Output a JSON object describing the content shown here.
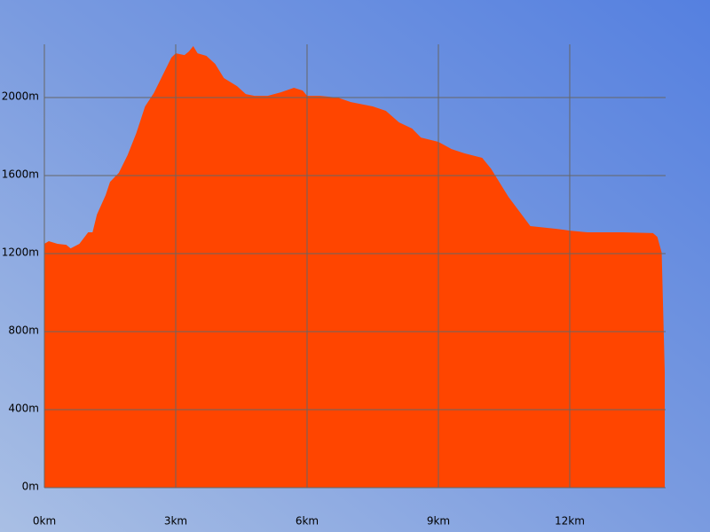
{
  "chart_data": {
    "type": "area",
    "color": "#ff4500",
    "grid": true,
    "x": [
      0,
      0.1,
      0.3,
      0.5,
      0.6,
      0.8,
      1.0,
      1.1,
      1.2,
      1.4,
      1.5,
      1.7,
      1.9,
      2.1,
      2.3,
      2.5,
      2.7,
      2.9,
      3.0,
      3.2,
      3.3,
      3.4,
      3.5,
      3.7,
      3.9,
      4.1,
      4.4,
      4.6,
      4.8,
      5.1,
      5.4,
      5.7,
      5.9,
      6.0,
      6.3,
      6.7,
      7.0,
      7.5,
      7.8,
      8.1,
      8.4,
      8.6,
      9.0,
      9.3,
      9.6,
      10.0,
      10.2,
      10.6,
      11.1,
      11.7,
      12.0,
      12.4,
      13.2,
      13.9,
      14.0,
      14.1,
      14.17
    ],
    "values": [
      1250,
      1264,
      1250,
      1245,
      1227,
      1250,
      1309,
      1309,
      1400,
      1500,
      1568,
      1614,
      1705,
      1818,
      1955,
      2023,
      2114,
      2205,
      2227,
      2218,
      2236,
      2264,
      2227,
      2214,
      2173,
      2100,
      2059,
      2018,
      2009,
      2009,
      2027,
      2050,
      2036,
      2009,
      2009,
      2000,
      1977,
      1955,
      1932,
      1873,
      1841,
      1795,
      1773,
      1736,
      1714,
      1691,
      1636,
      1491,
      1341,
      1327,
      1318,
      1309,
      1309,
      1305,
      1286,
      1205,
      591
    ],
    "xlim": [
      0,
      14.19
    ],
    "ylim": [
      0,
      2273
    ],
    "xticks": [
      {
        "value": 0,
        "label": "0km"
      },
      {
        "value": 3,
        "label": "3km"
      },
      {
        "value": 6,
        "label": "6km"
      },
      {
        "value": 9,
        "label": "9km"
      },
      {
        "value": 12,
        "label": "12km"
      }
    ],
    "yticks": [
      {
        "value": 0,
        "label": "0m"
      },
      {
        "value": 400,
        "label": "400m"
      },
      {
        "value": 800,
        "label": "800m"
      },
      {
        "value": 1200,
        "label": "1200m"
      },
      {
        "value": 1600,
        "label": "1600m"
      },
      {
        "value": 2000,
        "label": "2000m"
      }
    ]
  }
}
